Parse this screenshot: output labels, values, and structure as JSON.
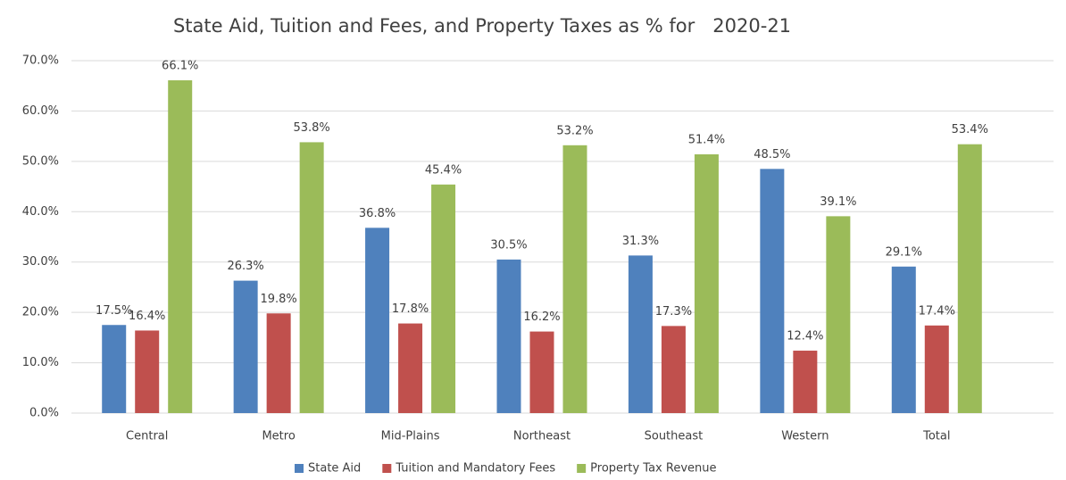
{
  "chart_data": {
    "type": "bar",
    "title": "State Aid, Tuition and Fees, and Property Taxes as % for   2020-21",
    "categories": [
      "Central",
      "Metro",
      "Mid-Plains",
      "Northeast",
      "Southeast",
      "Western",
      "Total"
    ],
    "series": [
      {
        "name": "State Aid",
        "color": "#4f81bd",
        "values": [
          17.5,
          26.3,
          36.8,
          30.5,
          31.3,
          48.5,
          29.1
        ],
        "value_labels": [
          "17.5%",
          "26.3%",
          "36.8%",
          "30.5%",
          "31.3%",
          "48.5%",
          "29.1%"
        ]
      },
      {
        "name": "Tuition and Mandatory Fees",
        "color": "#c0504d",
        "values": [
          16.4,
          19.8,
          17.8,
          16.2,
          17.3,
          12.4,
          17.4
        ],
        "value_labels": [
          "16.4%",
          "19.8%",
          "17.8%",
          "16.2%",
          "17.3%",
          "12.4%",
          "17.4%"
        ]
      },
      {
        "name": "Property Tax Revenue",
        "color": "#9bbb59",
        "values": [
          66.1,
          53.8,
          45.4,
          53.2,
          51.4,
          39.1,
          53.4
        ],
        "value_labels": [
          "66.1%",
          "53.8%",
          "45.4%",
          "53.2%",
          "51.4%",
          "39.1%",
          "53.4%"
        ]
      }
    ],
    "ylim": [
      0,
      70
    ],
    "yticks": [
      {
        "value": 0,
        "label": "0.0%"
      },
      {
        "value": 10,
        "label": "10.0%"
      },
      {
        "value": 20,
        "label": "20.0%"
      },
      {
        "value": 30,
        "label": "30.0%"
      },
      {
        "value": 40,
        "label": "40.0%"
      },
      {
        "value": 50,
        "label": "50.0%"
      },
      {
        "value": 60,
        "label": "60.0%"
      },
      {
        "value": 70,
        "label": "70.0%"
      }
    ],
    "grid": true,
    "legend": "bottom"
  }
}
